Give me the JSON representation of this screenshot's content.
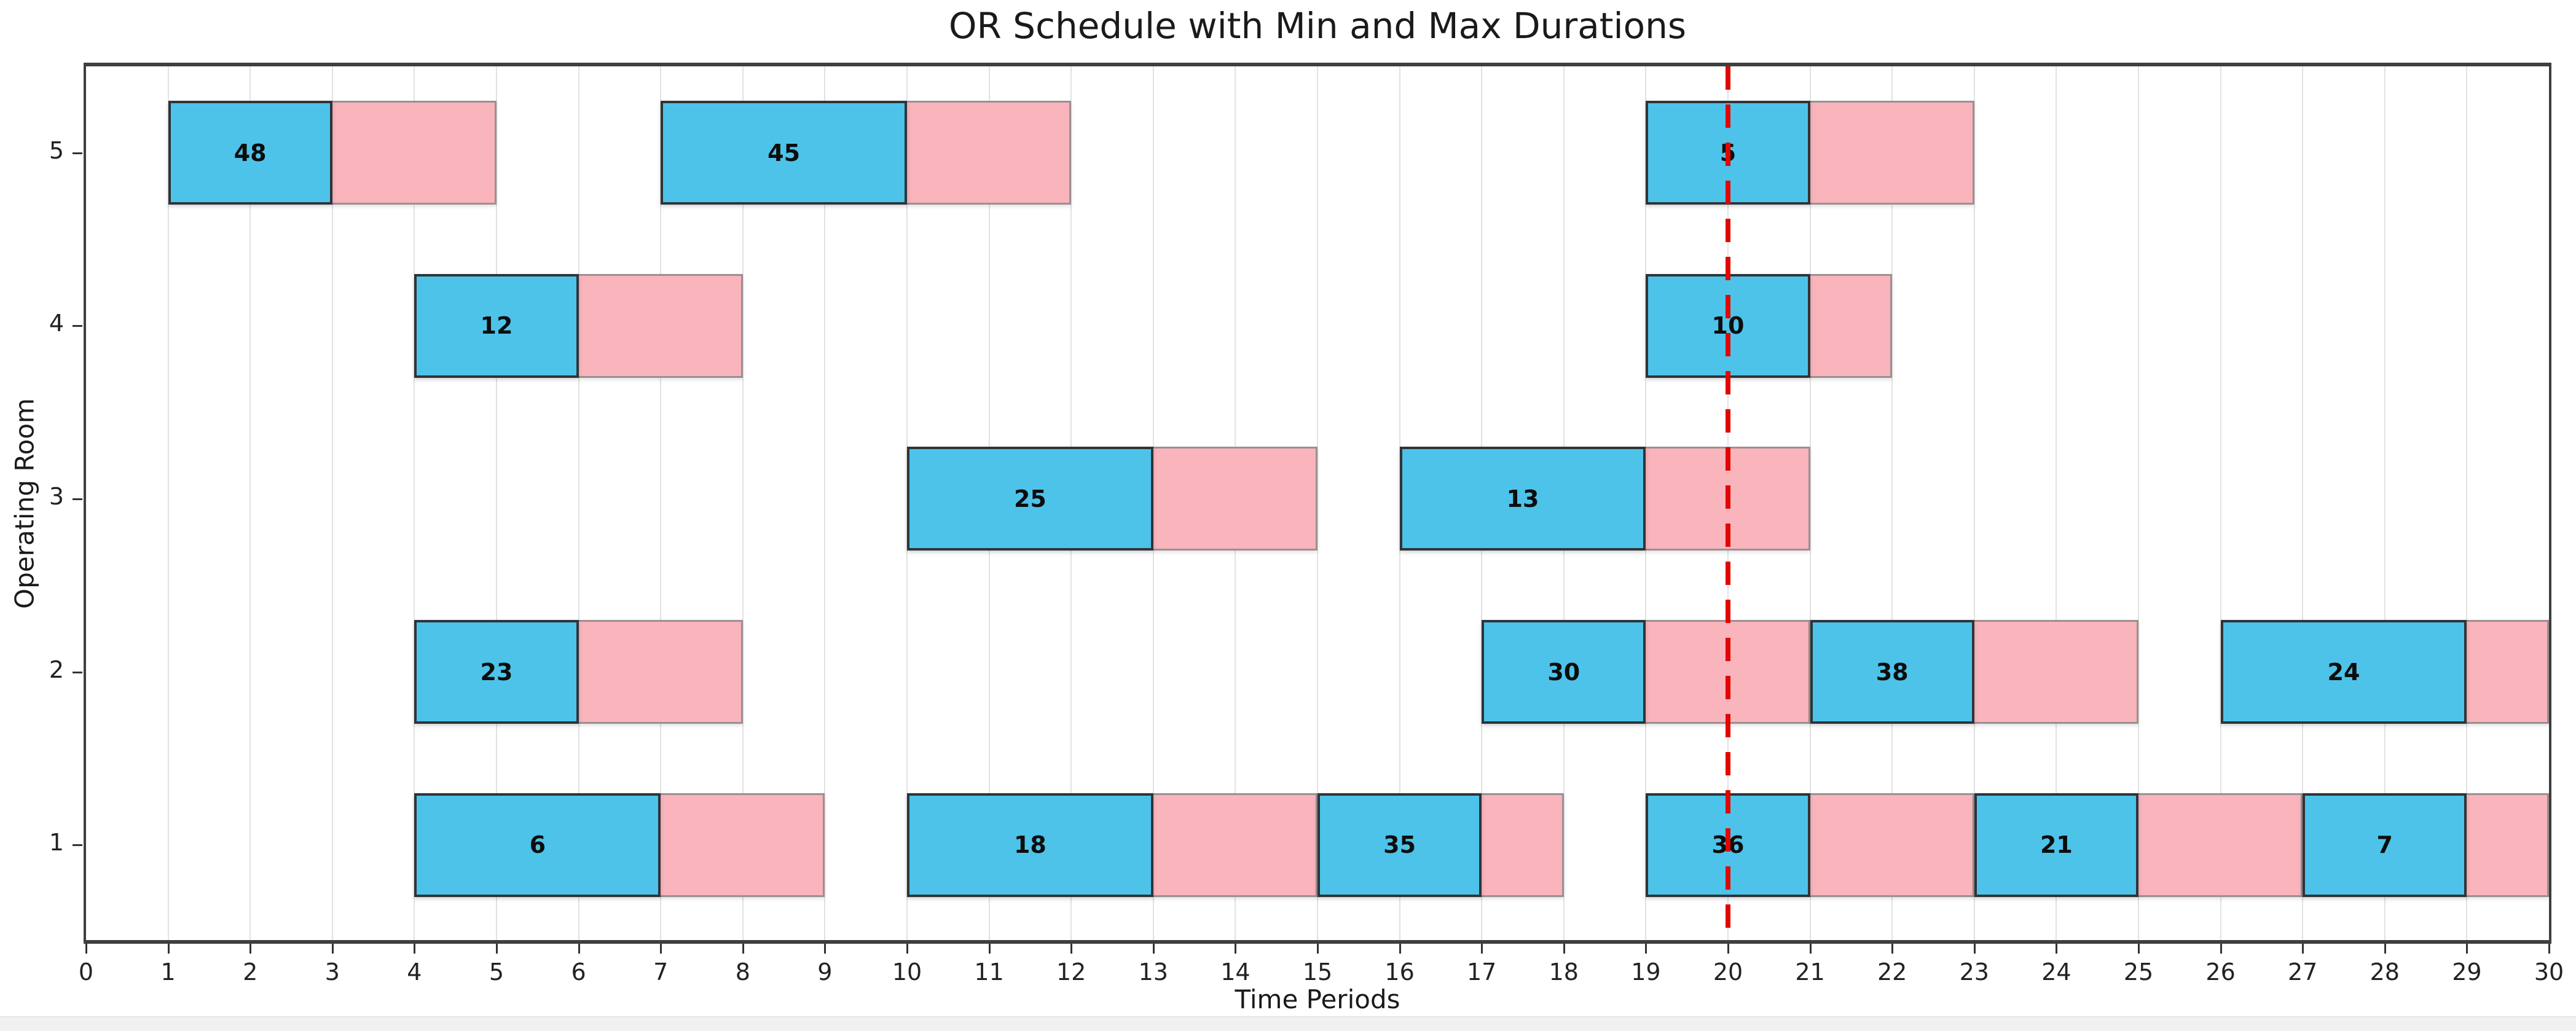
{
  "title": "OR Schedule with Min and Max Durations",
  "chart_data": {
    "type": "bar",
    "subtype": "horizontal-gantt",
    "title": "OR Schedule with Min and Max Durations",
    "xlabel": "Time Periods",
    "ylabel": "Operating Room",
    "xlim": [
      0,
      30
    ],
    "ylim": [
      0.45,
      5.5
    ],
    "xticks": [
      0,
      1,
      2,
      3,
      4,
      5,
      6,
      7,
      8,
      9,
      10,
      11,
      12,
      13,
      14,
      15,
      16,
      17,
      18,
      19,
      20,
      21,
      22,
      23,
      24,
      25,
      26,
      27,
      28,
      29,
      30
    ],
    "yticks": [
      1,
      2,
      3,
      4,
      5
    ],
    "grid": "vertical-on",
    "legend": "none-visible",
    "bar_height_units": 0.6,
    "now_line": {
      "x": 20,
      "color": "#e10600",
      "style": "dashed"
    },
    "colors": {
      "min_duration_fill": "#4dc3e9",
      "max_duration_fill": "#f9b4bc",
      "min_duration_edge": "#2e3438",
      "max_duration_edge": "#9c8f91",
      "grid": "#e2e2e2",
      "spine": "#3f3f3f",
      "now_line": "#e10600"
    },
    "bars": [
      {
        "room": 5,
        "label": "48",
        "start": 1,
        "min_end": 3,
        "max_end": 5
      },
      {
        "room": 5,
        "label": "45",
        "start": 7,
        "min_end": 10,
        "max_end": 12
      },
      {
        "room": 5,
        "label": "5",
        "start": 19,
        "min_end": 21,
        "max_end": 23
      },
      {
        "room": 4,
        "label": "12",
        "start": 4,
        "min_end": 6,
        "max_end": 8
      },
      {
        "room": 4,
        "label": "10",
        "start": 19,
        "min_end": 21,
        "max_end": 22
      },
      {
        "room": 3,
        "label": "25",
        "start": 10,
        "min_end": 13,
        "max_end": 15
      },
      {
        "room": 3,
        "label": "13",
        "start": 16,
        "min_end": 19,
        "max_end": 21
      },
      {
        "room": 2,
        "label": "23",
        "start": 4,
        "min_end": 6,
        "max_end": 8
      },
      {
        "room": 2,
        "label": "30",
        "start": 17,
        "min_end": 19,
        "max_end": 21
      },
      {
        "room": 2,
        "label": "38",
        "start": 21,
        "min_end": 23,
        "max_end": 25
      },
      {
        "room": 2,
        "label": "24",
        "start": 26,
        "min_end": 29,
        "max_end": 30
      },
      {
        "room": 1,
        "label": "6",
        "start": 4,
        "min_end": 7,
        "max_end": 9
      },
      {
        "room": 1,
        "label": "18",
        "start": 10,
        "min_end": 13,
        "max_end": 15
      },
      {
        "room": 1,
        "label": "35",
        "start": 15,
        "min_end": 17,
        "max_end": 18
      },
      {
        "room": 1,
        "label": "36",
        "start": 19,
        "min_end": 21,
        "max_end": 23
      },
      {
        "room": 1,
        "label": "21",
        "start": 23,
        "min_end": 25,
        "max_end": 27
      },
      {
        "room": 1,
        "label": "7",
        "start": 27,
        "min_end": 29,
        "max_end": 30
      }
    ]
  }
}
